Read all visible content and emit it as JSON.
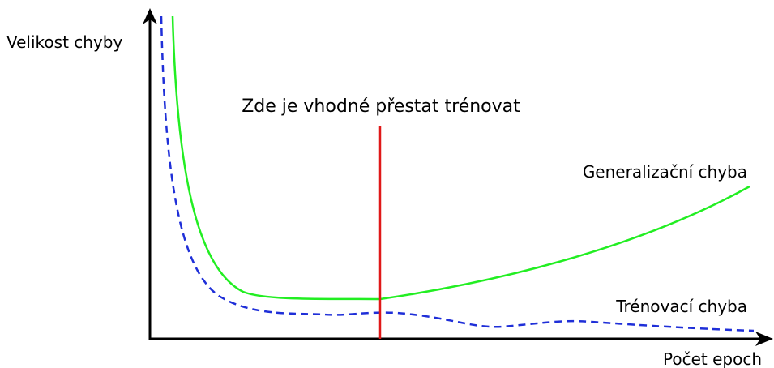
{
  "axes": {
    "y_label": "Velikost chyby",
    "x_label": "Počet epoch"
  },
  "annotation": "Zde je vhodné přestat trénovat",
  "curves": {
    "generalization": "Generalizační chyba",
    "training": "Trénovací chyba"
  }
}
